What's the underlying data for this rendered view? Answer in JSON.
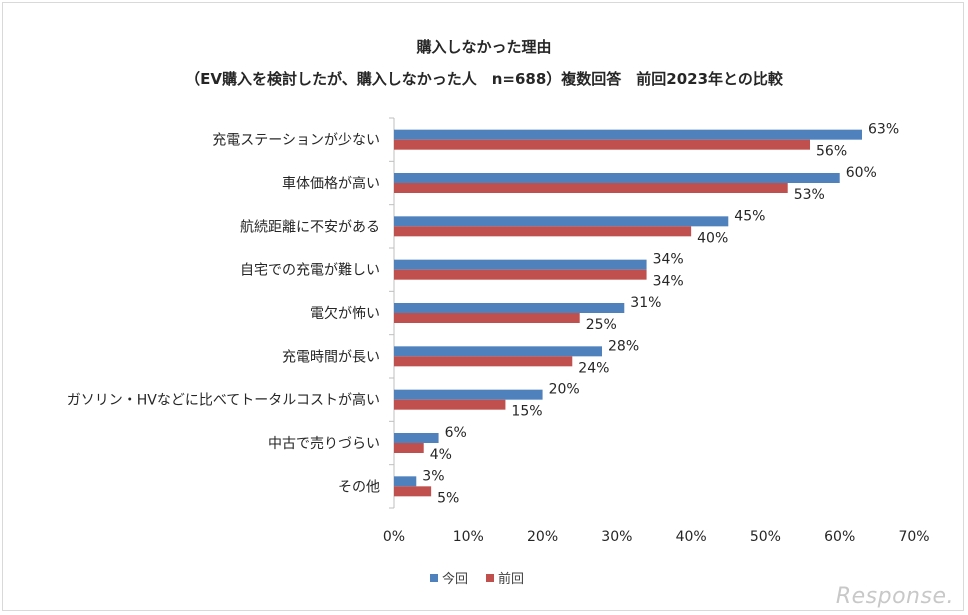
{
  "chart_data": {
    "type": "bar",
    "orientation": "horizontal",
    "title": "購入しなかった理由",
    "subtitle": "（EV購入を検討したが、購入しなかった人　n=688）複数回答　前回2023年との比較",
    "categories": [
      "充電ステーションが少ない",
      "車体価格が高い",
      "航続距離に不安がある",
      "自宅での充電が難しい",
      "電欠が怖い",
      "充電時間が長い",
      "ガソリン・HVなどに比べてトータルコストが高い",
      "中古で売りづらい",
      "その他"
    ],
    "series": [
      {
        "name": "今回",
        "color": "#4f81bd",
        "values": [
          63,
          60,
          45,
          34,
          31,
          28,
          20,
          6,
          3
        ]
      },
      {
        "name": "前回",
        "color": "#c0504d",
        "values": [
          56,
          53,
          40,
          34,
          25,
          24,
          15,
          4,
          5
        ]
      }
    ],
    "xlim": [
      0,
      70
    ],
    "x_ticks": [
      "0%",
      "10%",
      "20%",
      "30%",
      "40%",
      "50%",
      "60%",
      "70%"
    ],
    "value_suffix": "%",
    "legend_position": "bottom",
    "grid": false
  },
  "watermark": "Response."
}
